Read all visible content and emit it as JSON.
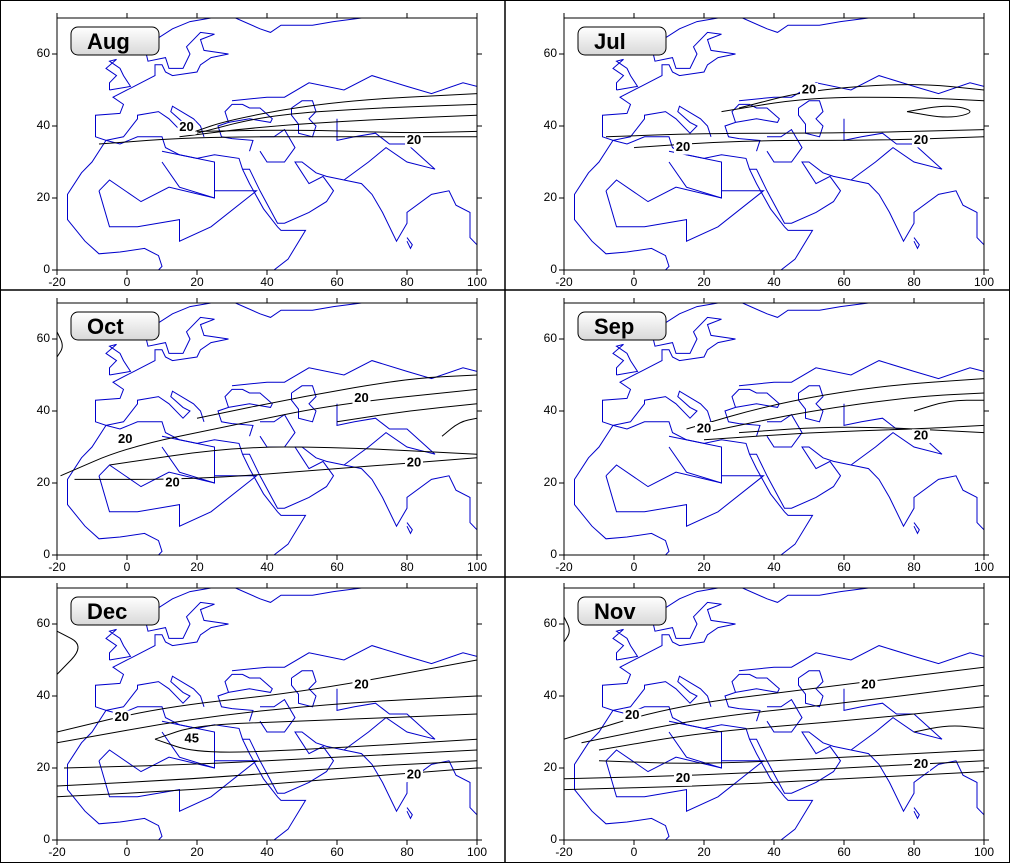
{
  "xlim": [
    -20,
    100
  ],
  "ylim": [
    0,
    70
  ],
  "xticks": [
    -20,
    0,
    20,
    40,
    60,
    80,
    100
  ],
  "yticks": [
    0,
    20,
    40,
    60
  ],
  "panels": [
    {
      "label": "Aug",
      "contour_labels": [
        20,
        20
      ]
    },
    {
      "label": "Jul",
      "contour_labels": [
        20,
        20,
        20
      ]
    },
    {
      "label": "Oct",
      "contour_labels": [
        20,
        20,
        20,
        20
      ]
    },
    {
      "label": "Sep",
      "contour_labels": [
        20,
        20
      ]
    },
    {
      "label": "Dec",
      "contour_labels": [
        20,
        45,
        20,
        20
      ]
    },
    {
      "label": "Nov",
      "contour_labels": [
        20,
        20,
        20,
        20
      ]
    }
  ]
}
